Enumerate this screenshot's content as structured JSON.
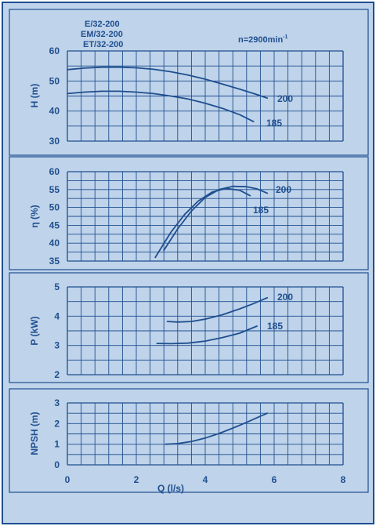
{
  "header": {
    "models": [
      "E/32-200",
      "EM/32-200",
      "ET/32-200"
    ],
    "speed": "n=2900min",
    "speed_exp": "-1"
  },
  "colors": {
    "background": "#bfd3ea",
    "line": "#1f4f8f",
    "grid": "#1f4f8f"
  },
  "chart_data": [
    {
      "type": "line",
      "ylabel": "H (m)",
      "ylim": [
        30,
        60
      ],
      "yticks": [
        30,
        40,
        50,
        60
      ],
      "xlim": [
        0,
        8
      ],
      "series": [
        {
          "name": "200",
          "x": [
            0,
            0.5,
            1,
            1.5,
            2,
            2.5,
            3,
            3.5,
            4,
            4.5,
            5,
            5.5,
            5.8
          ],
          "values": [
            53.8,
            54.3,
            54.6,
            54.6,
            54.4,
            53.9,
            53.1,
            52.0,
            50.6,
            49.0,
            47.3,
            45.5,
            44.3
          ]
        },
        {
          "name": "185",
          "x": [
            0,
            0.5,
            1,
            1.5,
            2,
            2.5,
            3,
            3.5,
            4,
            4.5,
            5,
            5.4
          ],
          "values": [
            45.8,
            46.3,
            46.6,
            46.6,
            46.3,
            45.8,
            45.0,
            44.0,
            42.6,
            40.9,
            38.8,
            36.5
          ]
        }
      ]
    },
    {
      "type": "line",
      "ylabel": "η (%)",
      "ylim": [
        35,
        60
      ],
      "yticks": [
        35,
        40,
        45,
        50,
        55,
        60
      ],
      "xlim": [
        0,
        8
      ],
      "series": [
        {
          "name": "200",
          "x": [
            2.8,
            3.2,
            3.6,
            4.0,
            4.4,
            4.8,
            5.2,
            5.5,
            5.8
          ],
          "values": [
            38,
            44,
            49,
            52.8,
            55.0,
            55.9,
            55.8,
            55.2,
            54.0
          ]
        },
        {
          "name": "185",
          "x": [
            2.55,
            3.0,
            3.4,
            3.8,
            4.2,
            4.6,
            5.0,
            5.3
          ],
          "values": [
            36,
            43,
            48,
            51.8,
            54.3,
            55.3,
            54.8,
            53.3
          ]
        }
      ]
    },
    {
      "type": "line",
      "ylabel": "P (kW)",
      "ylim": [
        2,
        5
      ],
      "yticks": [
        2,
        3,
        4,
        5
      ],
      "xlim": [
        0,
        8
      ],
      "series": [
        {
          "name": "200",
          "x": [
            2.9,
            3.2,
            3.6,
            4.0,
            4.5,
            5.0,
            5.4,
            5.8
          ],
          "values": [
            3.82,
            3.8,
            3.82,
            3.9,
            4.05,
            4.25,
            4.43,
            4.63
          ]
        },
        {
          "name": "185",
          "x": [
            2.6,
            3.0,
            3.5,
            4.0,
            4.5,
            5.0,
            5.5
          ],
          "values": [
            3.07,
            3.06,
            3.08,
            3.15,
            3.27,
            3.42,
            3.66
          ]
        }
      ]
    },
    {
      "type": "line",
      "ylabel": "NPSH (m)",
      "ylim": [
        0,
        3
      ],
      "yticks": [
        0,
        1,
        2,
        3
      ],
      "xlim": [
        0,
        8
      ],
      "xticks": [
        0,
        2,
        4,
        6,
        8
      ],
      "xlabel": "Q (l/s)",
      "series": [
        {
          "name": "",
          "x": [
            2.85,
            3.2,
            3.6,
            4.0,
            4.4,
            4.8,
            5.2,
            5.6,
            5.8
          ],
          "values": [
            1.0,
            1.03,
            1.13,
            1.3,
            1.52,
            1.78,
            2.06,
            2.36,
            2.5
          ]
        }
      ]
    }
  ]
}
